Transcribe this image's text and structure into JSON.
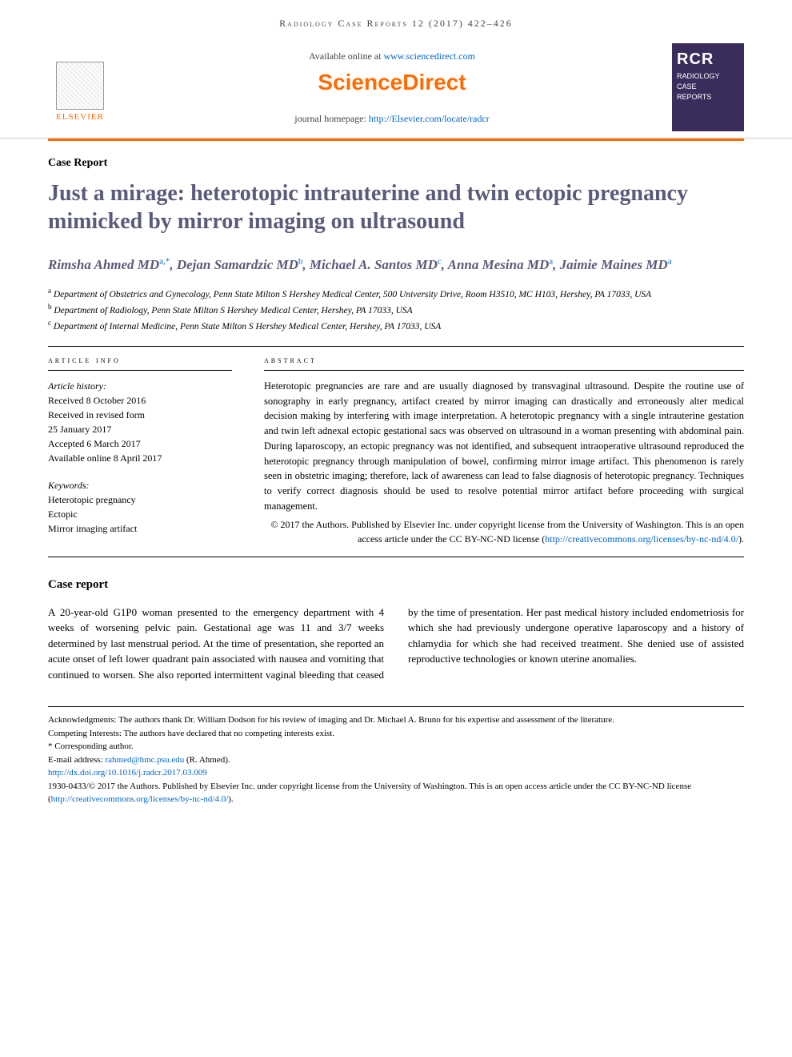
{
  "header": {
    "journal_ref": "Radiology Case Reports 12 (2017) 422–426",
    "available_prefix": "Available online at ",
    "available_link": "www.sciencedirect.com",
    "sciencedirect": "ScienceDirect",
    "homepage_prefix": "journal homepage: ",
    "homepage_link": "http://Elsevier.com/locate/radcr",
    "elsevier": "ELSEVIER",
    "cover_abbr": "RCR",
    "cover_line1": "RADIOLOGY",
    "cover_line2": "CASE",
    "cover_line3": "REPORTS"
  },
  "article": {
    "type": "Case Report",
    "title": "Just a mirage: heterotopic intrauterine and twin ectopic pregnancy mimicked by mirror imaging on ultrasound",
    "authors_html": "Rimsha Ahmed MD",
    "authors": [
      {
        "name": "Rimsha Ahmed MD",
        "sup": "a,*"
      },
      {
        "name": "Dejan Samardzic MD",
        "sup": "b"
      },
      {
        "name": "Michael A. Santos MD",
        "sup": "c"
      },
      {
        "name": "Anna Mesina MD",
        "sup": "a"
      },
      {
        "name": "Jaimie Maines MD",
        "sup": "a"
      }
    ],
    "affiliations": [
      {
        "sup": "a",
        "text": "Department of Obstetrics and Gynecology, Penn State Milton S Hershey Medical Center, 500 University Drive, Room H3510, MC H103, Hershey, PA 17033, USA"
      },
      {
        "sup": "b",
        "text": "Department of Radiology, Penn State Milton S Hershey Medical Center, Hershey, PA 17033, USA"
      },
      {
        "sup": "c",
        "text": "Department of Internal Medicine, Penn State Milton S Hershey Medical Center, Hershey, PA 17033, USA"
      }
    ]
  },
  "info": {
    "heading": "article info",
    "history_label": "Article history:",
    "history": [
      "Received 8 October 2016",
      "Received in revised form",
      "25 January 2017",
      "Accepted 6 March 2017",
      "Available online 8 April 2017"
    ],
    "keywords_label": "Keywords:",
    "keywords": [
      "Heterotopic pregnancy",
      "Ectopic",
      "Mirror imaging artifact"
    ]
  },
  "abstract": {
    "heading": "abstract",
    "text": "Heterotopic pregnancies are rare and are usually diagnosed by transvaginal ultrasound. Despite the routine use of sonography in early pregnancy, artifact created by mirror imaging can drastically and erroneously alter medical decision making by interfering with image interpretation. A heterotopic pregnancy with a single intrauterine gestation and twin left adnexal ectopic gestational sacs was observed on ultrasound in a woman presenting with abdominal pain. During laparoscopy, an ectopic pregnancy was not identified, and subsequent intraoperative ultrasound reproduced the heterotopic pregnancy through manipulation of bowel, confirming mirror image artifact. This phenomenon is rarely seen in obstetric imaging; therefore, lack of awareness can lead to false diagnosis of heterotopic pregnancy. Techniques to verify correct diagnosis should be used to resolve potential mirror artifact before proceeding with surgical management.",
    "copyright": "© 2017 the Authors. Published by Elsevier Inc. under copyright license from the University of Washington. This is an open access article under the CC BY-NC-ND license (",
    "license_link": "http://creativecommons.org/licenses/by-nc-nd/4.0/",
    "copyright_end": ")."
  },
  "body": {
    "section_heading": "Case report",
    "text": "A 20-year-old G1P0 woman presented to the emergency department with 4 weeks of worsening pelvic pain. Gestational age was 11 and 3/7 weeks determined by last menstrual period. At the time of presentation, she reported an acute onset of left lower quadrant pain associated with nausea and vomiting that continued to worsen. She also reported intermittent vaginal bleeding that ceased by the time of presentation. Her past medical history included endometriosis for which she had previously undergone operative laparoscopy and a history of chlamydia for which she had received treatment. She denied use of assisted reproductive technologies or known uterine anomalies."
  },
  "footnotes": {
    "ack": "Acknowledgments: The authors thank Dr. William Dodson for his review of imaging and Dr. Michael A. Bruno for his expertise and assessment of the literature.",
    "competing": "Competing Interests: The authors have declared that no competing interests exist.",
    "corresponding": "* Corresponding author.",
    "email_label": "E-mail address: ",
    "email": "rahmed@hmc.psu.edu",
    "email_name": " (R. Ahmed).",
    "doi": "http://dx.doi.org/10.1016/j.radcr.2017.03.009",
    "issn": "1930-0433/© 2017 the Authors. Published by Elsevier Inc. under copyright license from the University of Washington. This is an open access article under the CC BY-NC-ND license (",
    "issn_link": "http://creativecommons.org/licenses/by-nc-nd/4.0/",
    "issn_end": ")."
  }
}
